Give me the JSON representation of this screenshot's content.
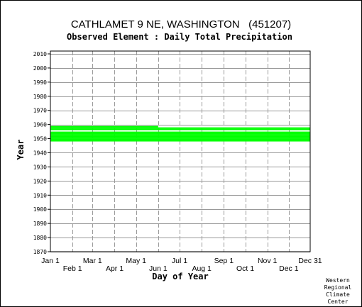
{
  "chart_data": {
    "type": "bar",
    "title": "CATHLAMET 9 NE, WASHINGTON   (451207)",
    "subtitle": "Observed Element : Daily Total Precipitation",
    "xlabel": "Day of Year",
    "ylabel": "Year",
    "xlim": [
      1,
      365
    ],
    "ylim": [
      1870,
      2012
    ],
    "x_ticks": [
      {
        "day": 1,
        "label": "Jan 1",
        "row": 0
      },
      {
        "day": 32,
        "label": "Feb 1",
        "row": 1
      },
      {
        "day": 60,
        "label": "Mar 1",
        "row": 0
      },
      {
        "day": 91,
        "label": "Apr 1",
        "row": 1
      },
      {
        "day": 121,
        "label": "May 1",
        "row": 0
      },
      {
        "day": 152,
        "label": "Jun 1",
        "row": 1
      },
      {
        "day": 182,
        "label": "Jul 1",
        "row": 0
      },
      {
        "day": 213,
        "label": "Aug 1",
        "row": 1
      },
      {
        "day": 244,
        "label": "Sep 1",
        "row": 0
      },
      {
        "day": 274,
        "label": "Oct 1",
        "row": 1
      },
      {
        "day": 305,
        "label": "Nov 1",
        "row": 0
      },
      {
        "day": 335,
        "label": "Dec 1",
        "row": 1
      },
      {
        "day": 365,
        "label": "Dec 31",
        "row": 0
      }
    ],
    "y_ticks": [
      1870,
      1880,
      1890,
      1900,
      1910,
      1920,
      1930,
      1940,
      1950,
      1960,
      1970,
      1980,
      1990,
      2000,
      2010
    ],
    "grid": true,
    "color": "#00ff00",
    "records": [
      {
        "year_start": 1948,
        "year_end": 1949,
        "day_start": 1,
        "day_end": 365
      },
      {
        "year_start": 1949,
        "year_end": 1950,
        "day_start": 1,
        "day_end": 365
      },
      {
        "year_start": 1950,
        "year_end": 1951,
        "day_start": 1,
        "day_end": 365
      },
      {
        "year_start": 1951,
        "year_end": 1952,
        "day_start": 1,
        "day_end": 365
      },
      {
        "year_start": 1952,
        "year_end": 1953,
        "day_start": 1,
        "day_end": 365
      },
      {
        "year_start": 1953,
        "year_end": 1954,
        "day_start": 1,
        "day_end": 365
      },
      {
        "year_start": 1954,
        "year_end": 1955,
        "day_start": 1,
        "day_end": 365
      },
      {
        "year_start": 1956,
        "year_end": 1957,
        "day_start": 1,
        "day_end": 365
      },
      {
        "year_start": 1957,
        "year_end": 1958,
        "day_start": 1,
        "day_end": 365
      },
      {
        "year_start": 1958,
        "year_end": 1959,
        "day_start": 1,
        "day_end": 152
      }
    ]
  },
  "credit": [
    "Western",
    "Regional",
    "Climate",
    "Center"
  ]
}
